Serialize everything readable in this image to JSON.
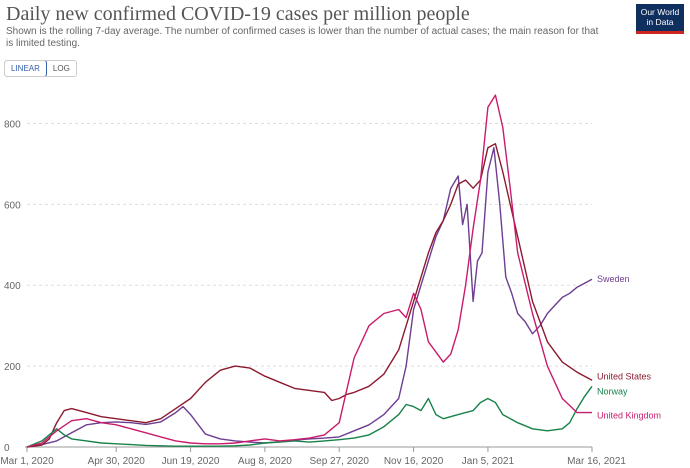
{
  "header": {
    "title": "Daily new confirmed COVID-19 cases per million people",
    "subtitle": "Shown is the rolling 7-day average. The number of confirmed cases is lower than the number of actual cases; the main reason for that is limited testing.",
    "logo_line1": "Our World",
    "logo_line2": "in Data"
  },
  "toggle": {
    "linear_label": "LINEAR",
    "log_label": "LOG",
    "active": "linear"
  },
  "colors": {
    "sweden": "#6d3e91",
    "united_states": "#8b1a2f",
    "norway": "#18824a",
    "united_kingdom": "#c91c6b",
    "grid": "#dddddd",
    "axis": "#999999"
  },
  "chart_data": {
    "type": "line",
    "title": "Daily new confirmed COVID-19 cases per million people",
    "xlabel": "",
    "ylabel": "",
    "x_domain_days": [
      0,
      380
    ],
    "ylim": [
      0,
      900
    ],
    "y_ticks": [
      0,
      200,
      400,
      600,
      800
    ],
    "x_ticks": [
      {
        "label": "Mar 1, 2020",
        "day": 0
      },
      {
        "label": "Apr 30, 2020",
        "day": 60
      },
      {
        "label": "Jun 19, 2020",
        "day": 110
      },
      {
        "label": "Aug 8, 2020",
        "day": 160
      },
      {
        "label": "Sep 27, 2020",
        "day": 210
      },
      {
        "label": "Nov 16, 2020",
        "day": 260
      },
      {
        "label": "Jan 5, 2021",
        "day": 310
      },
      {
        "label": "Mar 16, 2021",
        "day": 380
      }
    ],
    "x_unit": "days since Mar 1, 2020",
    "series": [
      {
        "name": "Sweden",
        "color_key": "sweden",
        "x": [
          0,
          10,
          20,
          30,
          40,
          50,
          60,
          70,
          80,
          90,
          100,
          105,
          110,
          120,
          130,
          140,
          150,
          160,
          170,
          180,
          190,
          200,
          210,
          220,
          230,
          240,
          250,
          255,
          260,
          270,
          275,
          280,
          285,
          290,
          293,
          296,
          300,
          303,
          306,
          310,
          314,
          318,
          322,
          326,
          330,
          335,
          340,
          345,
          350,
          355,
          360,
          365,
          370,
          375,
          380
        ],
        "y": [
          0,
          6,
          15,
          35,
          55,
          60,
          62,
          60,
          56,
          62,
          85,
          100,
          80,
          32,
          20,
          15,
          12,
          10,
          13,
          17,
          20,
          22,
          25,
          40,
          55,
          80,
          120,
          200,
          340,
          460,
          520,
          560,
          640,
          670,
          550,
          600,
          360,
          460,
          480,
          680,
          740,
          600,
          420,
          380,
          330,
          310,
          280,
          300,
          330,
          350,
          370,
          380,
          395,
          405,
          415
        ]
      },
      {
        "name": "United States",
        "color_key": "united_states",
        "x": [
          0,
          10,
          15,
          20,
          25,
          30,
          40,
          50,
          60,
          70,
          80,
          90,
          100,
          110,
          120,
          130,
          140,
          150,
          160,
          170,
          180,
          190,
          200,
          205,
          210,
          215,
          220,
          230,
          240,
          250,
          260,
          270,
          275,
          280,
          285,
          290,
          295,
          300,
          305,
          310,
          315,
          320,
          330,
          340,
          350,
          360,
          370,
          380
        ],
        "y": [
          0,
          5,
          20,
          60,
          90,
          95,
          85,
          75,
          70,
          65,
          60,
          70,
          95,
          120,
          160,
          190,
          200,
          195,
          175,
          160,
          145,
          140,
          135,
          115,
          120,
          130,
          135,
          150,
          180,
          240,
          360,
          480,
          530,
          560,
          600,
          650,
          660,
          640,
          660,
          740,
          750,
          680,
          520,
          360,
          260,
          210,
          185,
          165
        ]
      },
      {
        "name": "Norway",
        "color_key": "norway",
        "x": [
          0,
          10,
          20,
          25,
          30,
          40,
          50,
          60,
          70,
          80,
          90,
          100,
          110,
          120,
          130,
          140,
          150,
          160,
          170,
          180,
          190,
          200,
          210,
          220,
          230,
          240,
          250,
          255,
          260,
          265,
          270,
          275,
          280,
          290,
          300,
          305,
          310,
          315,
          320,
          330,
          340,
          350,
          360,
          365,
          370,
          375,
          380
        ],
        "y": [
          0,
          15,
          45,
          30,
          20,
          15,
          10,
          8,
          6,
          4,
          3,
          2,
          2,
          2,
          2,
          3,
          5,
          10,
          12,
          15,
          12,
          15,
          18,
          22,
          30,
          50,
          80,
          105,
          100,
          90,
          120,
          80,
          70,
          80,
          90,
          110,
          120,
          110,
          80,
          60,
          45,
          40,
          45,
          60,
          95,
          125,
          150
        ]
      },
      {
        "name": "United Kingdom",
        "color_key": "united_kingdom",
        "x": [
          0,
          10,
          20,
          30,
          40,
          50,
          60,
          70,
          80,
          90,
          100,
          110,
          120,
          130,
          140,
          150,
          160,
          170,
          180,
          190,
          200,
          210,
          220,
          230,
          240,
          250,
          255,
          260,
          265,
          270,
          280,
          285,
          290,
          295,
          300,
          305,
          310,
          315,
          320,
          325,
          330,
          340,
          350,
          360,
          370,
          380
        ],
        "y": [
          0,
          10,
          40,
          65,
          70,
          60,
          55,
          45,
          35,
          25,
          15,
          10,
          8,
          8,
          10,
          15,
          20,
          15,
          18,
          22,
          30,
          60,
          220,
          300,
          330,
          340,
          320,
          380,
          340,
          260,
          210,
          230,
          290,
          400,
          540,
          660,
          840,
          870,
          790,
          640,
          480,
          330,
          200,
          120,
          85,
          85
        ]
      }
    ]
  }
}
